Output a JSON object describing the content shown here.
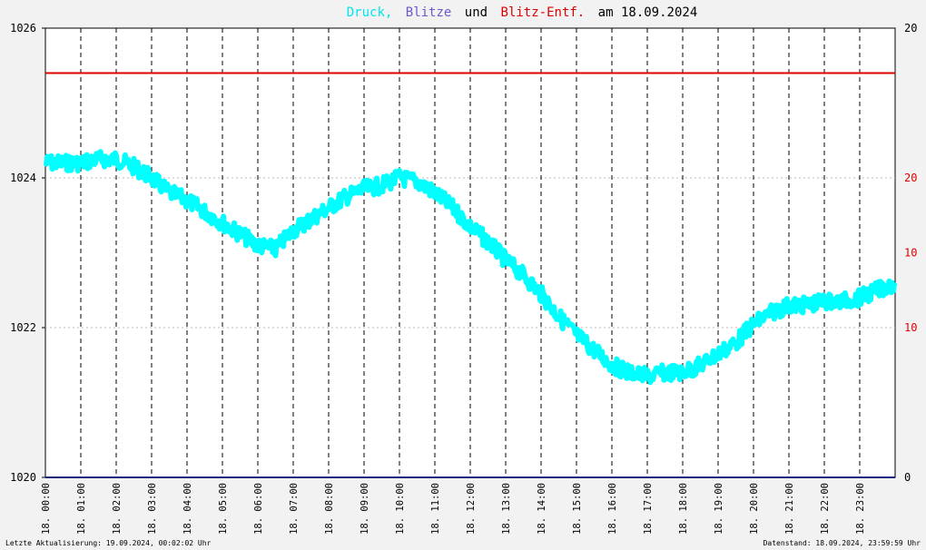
{
  "title": {
    "part1": "Druck,",
    "part2": "Blitze",
    "part3": "und",
    "part4": "Blitz-Entf.",
    "part5": "am 18.09.2024"
  },
  "footer": {
    "left": "Letzte Aktualisierung: 19.09.2024, 00:02:02 Uhr",
    "right": "Datenstand: 18.09.2024, 23:59:59 Uhr"
  },
  "colors": {
    "druck": "#00ffff",
    "blitze": "#7070cc",
    "blitz_entf": "#dd0000",
    "background": "#f2f2f2",
    "plot_background": "#ffffff",
    "title_black": "#000000",
    "baseline": "#1a237e"
  },
  "chart_data": {
    "type": "line",
    "title": "Druck, Blitze und Blitz-Entf. am 18.09.2024",
    "x_labels": [
      "18. 00:00",
      "18. 01:00",
      "18. 02:00",
      "18. 03:00",
      "18. 04:00",
      "18. 05:00",
      "18. 06:00",
      "18. 07:00",
      "18. 08:00",
      "18. 09:00",
      "18. 10:00",
      "18. 11:00",
      "18. 12:00",
      "18. 13:00",
      "18. 14:00",
      "18. 15:00",
      "18. 16:00",
      "18. 17:00",
      "18. 18:00",
      "18. 19:00",
      "18. 20:00",
      "18. 21:00",
      "18. 22:00",
      "18. 23:00"
    ],
    "xlim_hours": [
      0,
      24
    ],
    "left_axis": {
      "ylim": [
        1020,
        1026
      ],
      "ticks": [
        "1020",
        "1022",
        "1024",
        "1026"
      ]
    },
    "right_axis_outer": {
      "ticks": [
        "0",
        "20"
      ]
    },
    "right_axis_inner": {
      "ticks": [
        "10",
        "20"
      ]
    },
    "right_axis_mid": {
      "ticks": [
        "10"
      ]
    },
    "grid": true,
    "series": [
      {
        "name": "Druck",
        "axis": "left",
        "x_hours": [
          0,
          0.5,
          1,
          1.5,
          2,
          2.5,
          3,
          3.5,
          4,
          4.5,
          5,
          5.5,
          6,
          6.5,
          7,
          7.5,
          8,
          8.5,
          9,
          9.5,
          10,
          10.5,
          11,
          11.5,
          12,
          12.5,
          13,
          13.5,
          14,
          14.5,
          15,
          15.5,
          16,
          16.5,
          17,
          17.5,
          18,
          18.5,
          19,
          19.5,
          20,
          20.5,
          21,
          21.5,
          22,
          22.5,
          23,
          23.5,
          24
        ],
        "values": [
          1024.2,
          1024.2,
          1024.2,
          1024.25,
          1024.25,
          1024.15,
          1024.0,
          1023.8,
          1023.7,
          1023.55,
          1023.4,
          1023.25,
          1023.1,
          1023.05,
          1023.3,
          1023.45,
          1023.6,
          1023.75,
          1023.85,
          1023.9,
          1024.0,
          1023.95,
          1023.8,
          1023.6,
          1023.35,
          1023.15,
          1022.9,
          1022.7,
          1022.45,
          1022.15,
          1021.9,
          1021.7,
          1021.5,
          1021.4,
          1021.35,
          1021.4,
          1021.4,
          1021.5,
          1021.65,
          1021.8,
          1022.05,
          1022.2,
          1022.3,
          1022.3,
          1022.35,
          1022.35,
          1022.4,
          1022.5,
          1022.6
        ]
      },
      {
        "name": "Blitz-Entf.",
        "axis": "right",
        "constant_level_left_units": 1025.4
      },
      {
        "name": "Blitze",
        "axis": "right",
        "constant_level_left_units": 1020.0
      }
    ]
  }
}
